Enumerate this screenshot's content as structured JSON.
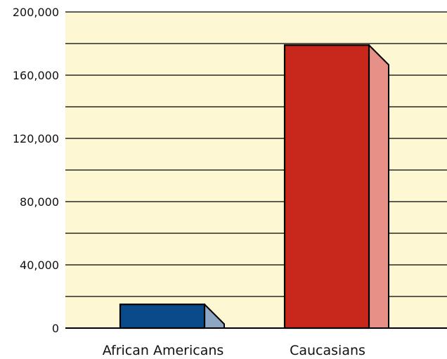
{
  "chart_data": {
    "type": "bar",
    "title": "",
    "xlabel": "",
    "ylabel": "",
    "categories": [
      "African Americans",
      "Caucasians"
    ],
    "values": [
      15000,
      179000
    ],
    "ylim": [
      0,
      200000
    ],
    "y_ticks": [
      0,
      40000,
      80000,
      120000,
      160000,
      200000
    ],
    "y_tick_labels": [
      "0",
      "40,000",
      "80,000",
      "120,000",
      "160,000",
      "200,000"
    ],
    "grid": true,
    "grid_step": 20000,
    "bar_style": "3d",
    "colors": {
      "background": "#fdf7d3",
      "grid": "#000000",
      "bars": [
        {
          "front": "#0b4a8a",
          "side": "#8da6c4"
        },
        {
          "front": "#c8281c",
          "side": "#e69088"
        }
      ]
    }
  }
}
